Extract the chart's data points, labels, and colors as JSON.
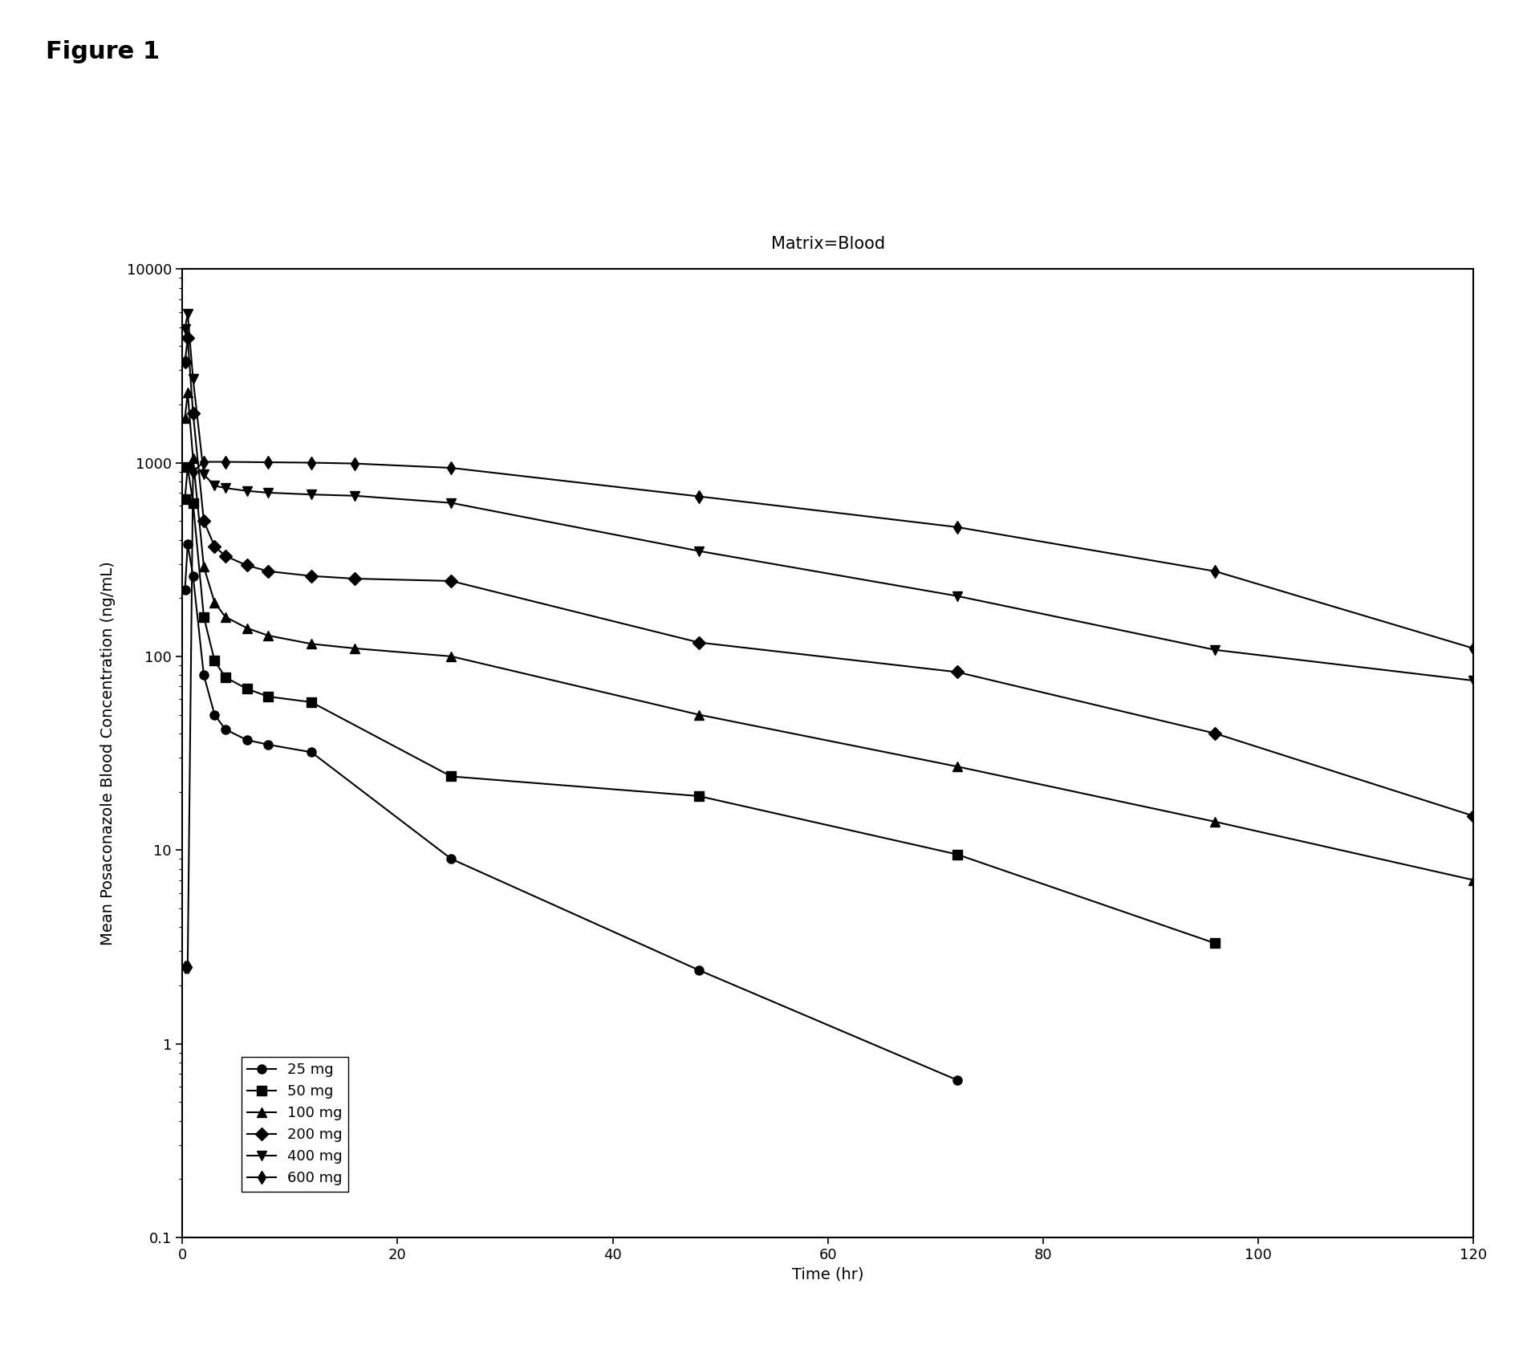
{
  "title": "Matrix=Blood",
  "figure_label": "Figure 1",
  "xlabel": "Time (hr)",
  "ylabel": "Mean Posaconazole Blood Concentration (ng/mL)",
  "xlim": [
    0,
    120
  ],
  "ylim": [
    0.1,
    10000
  ],
  "xticks": [
    0,
    20,
    40,
    60,
    80,
    100,
    120
  ],
  "yticks": [
    0.1,
    1,
    10,
    100,
    1000,
    10000
  ],
  "ytick_labels": [
    "0.1",
    "1",
    "10",
    "100",
    "1000",
    "10000"
  ],
  "series": [
    {
      "label": "25 mg",
      "marker": "o",
      "x": [
        0.25,
        0.5,
        1,
        2,
        3,
        4,
        6,
        8,
        12,
        25,
        48,
        72,
        96
      ],
      "y": [
        220,
        380,
        260,
        80,
        50,
        42,
        37,
        35,
        32,
        9,
        2.4,
        0.65,
        null
      ]
    },
    {
      "label": "50 mg",
      "marker": "s",
      "x": [
        0.25,
        0.5,
        1,
        2,
        3,
        4,
        6,
        8,
        12,
        25,
        48,
        72,
        96,
        120
      ],
      "y": [
        650,
        950,
        620,
        160,
        95,
        78,
        68,
        62,
        58,
        24,
        19,
        9.5,
        3.3,
        null
      ]
    },
    {
      "label": "100 mg",
      "marker": "^",
      "x": [
        0.25,
        0.5,
        1,
        2,
        3,
        4,
        6,
        8,
        12,
        16,
        25,
        48,
        72,
        96,
        120
      ],
      "y": [
        1700,
        2300,
        1050,
        290,
        190,
        160,
        140,
        128,
        116,
        110,
        100,
        50,
        27,
        14,
        7
      ]
    },
    {
      "label": "200 mg",
      "marker": "D",
      "x": [
        0.25,
        0.5,
        1,
        2,
        3,
        4,
        6,
        8,
        12,
        16,
        25,
        48,
        72,
        96,
        120
      ],
      "y": [
        3300,
        4400,
        1800,
        500,
        370,
        330,
        295,
        275,
        260,
        252,
        245,
        118,
        83,
        40,
        15
      ]
    },
    {
      "label": "400 mg",
      "marker": "v",
      "x": [
        0.25,
        0.5,
        1,
        2,
        3,
        4,
        6,
        8,
        12,
        16,
        25,
        48,
        72,
        96,
        120
      ],
      "y": [
        4900,
        5900,
        2700,
        870,
        760,
        740,
        715,
        700,
        685,
        675,
        620,
        350,
        205,
        108,
        75
      ]
    },
    {
      "label": "600 mg",
      "marker": "d",
      "x": [
        0.25,
        0.5,
        1,
        2,
        4,
        8,
        12,
        16,
        25,
        48,
        72,
        96,
        120
      ],
      "y": [
        2.5,
        2.5,
        900,
        1010,
        1010,
        1005,
        1000,
        990,
        940,
        670,
        465,
        275,
        110
      ]
    }
  ],
  "background_color": "#ffffff",
  "linewidth": 1.5,
  "markersize": 8,
  "title_fontsize": 15,
  "label_fontsize": 14,
  "tick_fontsize": 13,
  "legend_fontsize": 13,
  "figure_label_fontsize": 22
}
